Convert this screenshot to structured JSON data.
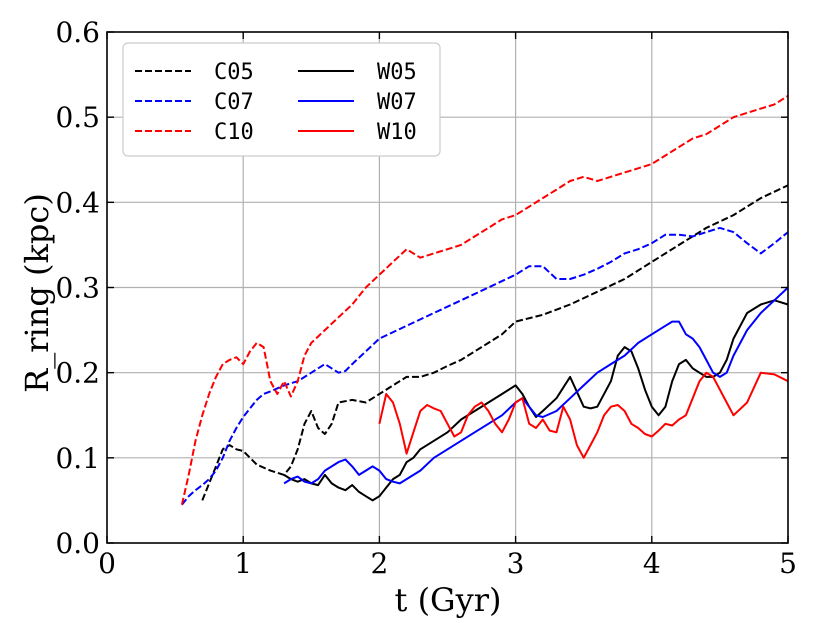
{
  "chart_data": {
    "type": "line",
    "xlabel": "t (Gyr)",
    "ylabel": "R_ring (kpc)",
    "xlim": [
      0,
      5
    ],
    "ylim": [
      0,
      0.6
    ],
    "xticks": [
      0,
      1,
      2,
      3,
      4,
      5
    ],
    "yticks": [
      0.0,
      0.1,
      0.2,
      0.3,
      0.4,
      0.5,
      0.6
    ],
    "xtick_labels": [
      "0",
      "1",
      "2",
      "3",
      "4",
      "5"
    ],
    "ytick_labels": [
      "0.0",
      "0.1",
      "0.2",
      "0.3",
      "0.4",
      "0.5",
      "0.6"
    ],
    "grid": true,
    "legend_position": "top-left",
    "series": [
      {
        "name": "C05",
        "color": "#000000",
        "style": "dashed",
        "x": [
          0.7,
          0.75,
          0.8,
          0.85,
          0.9,
          0.95,
          1.0,
          1.05,
          1.1,
          1.2,
          1.3,
          1.35,
          1.4,
          1.45,
          1.5,
          1.55,
          1.6,
          1.65,
          1.7,
          1.8,
          1.9,
          2.0,
          2.1,
          2.2,
          2.3,
          2.4,
          2.5,
          2.6,
          2.7,
          2.8,
          2.9,
          3.0,
          3.2,
          3.4,
          3.6,
          3.8,
          4.0,
          4.2,
          4.4,
          4.6,
          4.8,
          5.0
        ],
        "y": [
          0.05,
          0.07,
          0.09,
          0.11,
          0.115,
          0.11,
          0.108,
          0.1,
          0.092,
          0.085,
          0.08,
          0.09,
          0.11,
          0.14,
          0.155,
          0.135,
          0.128,
          0.14,
          0.165,
          0.168,
          0.165,
          0.175,
          0.185,
          0.195,
          0.195,
          0.2,
          0.208,
          0.215,
          0.225,
          0.235,
          0.245,
          0.26,
          0.268,
          0.28,
          0.295,
          0.31,
          0.33,
          0.35,
          0.37,
          0.385,
          0.405,
          0.42
        ]
      },
      {
        "name": "C07",
        "color": "#0000ff",
        "style": "dashed",
        "x": [
          0.55,
          0.6,
          0.65,
          0.7,
          0.75,
          0.8,
          0.85,
          0.9,
          0.95,
          1.0,
          1.05,
          1.1,
          1.15,
          1.2,
          1.3,
          1.4,
          1.5,
          1.6,
          1.7,
          1.75,
          1.8,
          1.9,
          2.0,
          2.2,
          2.4,
          2.6,
          2.8,
          3.0,
          3.1,
          3.2,
          3.3,
          3.4,
          3.5,
          3.6,
          3.7,
          3.8,
          3.9,
          4.0,
          4.1,
          4.2,
          4.3,
          4.4,
          4.5,
          4.6,
          4.7,
          4.8,
          4.9,
          5.0
        ],
        "y": [
          0.045,
          0.055,
          0.062,
          0.068,
          0.075,
          0.085,
          0.1,
          0.12,
          0.135,
          0.148,
          0.158,
          0.168,
          0.175,
          0.178,
          0.185,
          0.19,
          0.2,
          0.21,
          0.2,
          0.202,
          0.21,
          0.225,
          0.24,
          0.255,
          0.27,
          0.285,
          0.3,
          0.315,
          0.325,
          0.325,
          0.31,
          0.31,
          0.315,
          0.322,
          0.33,
          0.34,
          0.345,
          0.352,
          0.362,
          0.362,
          0.36,
          0.365,
          0.37,
          0.365,
          0.352,
          0.34,
          0.352,
          0.365
        ]
      },
      {
        "name": "C10",
        "color": "#ff0000",
        "style": "dashed",
        "x": [
          0.55,
          0.6,
          0.65,
          0.7,
          0.75,
          0.8,
          0.85,
          0.9,
          0.95,
          1.0,
          1.05,
          1.1,
          1.15,
          1.2,
          1.25,
          1.3,
          1.35,
          1.4,
          1.45,
          1.5,
          1.6,
          1.7,
          1.8,
          1.9,
          2.0,
          2.1,
          2.2,
          2.3,
          2.4,
          2.5,
          2.6,
          2.7,
          2.8,
          2.9,
          3.0,
          3.1,
          3.2,
          3.3,
          3.4,
          3.5,
          3.6,
          3.7,
          3.8,
          3.9,
          4.0,
          4.1,
          4.2,
          4.3,
          4.4,
          4.5,
          4.6,
          4.7,
          4.8,
          4.9,
          5.0
        ],
        "y": [
          0.045,
          0.08,
          0.12,
          0.15,
          0.175,
          0.195,
          0.21,
          0.215,
          0.218,
          0.21,
          0.225,
          0.235,
          0.23,
          0.19,
          0.175,
          0.19,
          0.172,
          0.19,
          0.22,
          0.235,
          0.25,
          0.265,
          0.28,
          0.3,
          0.315,
          0.33,
          0.345,
          0.335,
          0.34,
          0.345,
          0.35,
          0.36,
          0.37,
          0.38,
          0.385,
          0.395,
          0.405,
          0.415,
          0.425,
          0.43,
          0.425,
          0.43,
          0.435,
          0.44,
          0.445,
          0.455,
          0.465,
          0.475,
          0.48,
          0.49,
          0.5,
          0.505,
          0.51,
          0.515,
          0.525
        ]
      },
      {
        "name": "W05",
        "color": "#000000",
        "style": "solid",
        "x": [
          1.3,
          1.35,
          1.4,
          1.45,
          1.5,
          1.55,
          1.6,
          1.65,
          1.7,
          1.75,
          1.8,
          1.85,
          1.9,
          1.95,
          2.0,
          2.05,
          2.1,
          2.15,
          2.2,
          2.25,
          2.3,
          2.4,
          2.5,
          2.6,
          2.7,
          2.8,
          2.9,
          3.0,
          3.05,
          3.1,
          3.15,
          3.2,
          3.3,
          3.4,
          3.5,
          3.55,
          3.6,
          3.7,
          3.75,
          3.8,
          3.85,
          3.9,
          3.95,
          4.0,
          4.05,
          4.1,
          4.15,
          4.2,
          4.25,
          4.3,
          4.35,
          4.4,
          4.45,
          4.5,
          4.55,
          4.6,
          4.7,
          4.8,
          4.9,
          5.0
        ],
        "y": [
          0.08,
          0.075,
          0.072,
          0.075,
          0.07,
          0.068,
          0.08,
          0.07,
          0.065,
          0.062,
          0.068,
          0.06,
          0.055,
          0.05,
          0.055,
          0.065,
          0.075,
          0.08,
          0.095,
          0.1,
          0.11,
          0.12,
          0.13,
          0.145,
          0.155,
          0.165,
          0.175,
          0.185,
          0.175,
          0.16,
          0.148,
          0.155,
          0.17,
          0.195,
          0.16,
          0.158,
          0.16,
          0.19,
          0.22,
          0.23,
          0.225,
          0.205,
          0.18,
          0.16,
          0.15,
          0.16,
          0.19,
          0.21,
          0.215,
          0.205,
          0.2,
          0.195,
          0.195,
          0.2,
          0.215,
          0.24,
          0.27,
          0.28,
          0.285,
          0.28
        ]
      },
      {
        "name": "W07",
        "color": "#0000ff",
        "style": "solid",
        "x": [
          1.3,
          1.35,
          1.4,
          1.45,
          1.5,
          1.55,
          1.6,
          1.65,
          1.7,
          1.75,
          1.8,
          1.85,
          1.9,
          1.95,
          2.0,
          2.05,
          2.1,
          2.15,
          2.2,
          2.3,
          2.4,
          2.5,
          2.6,
          2.7,
          2.8,
          2.9,
          3.0,
          3.05,
          3.1,
          3.15,
          3.2,
          3.3,
          3.4,
          3.5,
          3.6,
          3.7,
          3.8,
          3.9,
          4.0,
          4.1,
          4.15,
          4.2,
          4.25,
          4.3,
          4.35,
          4.4,
          4.45,
          4.5,
          4.55,
          4.6,
          4.7,
          4.8,
          4.9,
          5.0
        ],
        "y": [
          0.07,
          0.075,
          0.078,
          0.072,
          0.07,
          0.075,
          0.085,
          0.09,
          0.095,
          0.098,
          0.09,
          0.08,
          0.085,
          0.09,
          0.085,
          0.075,
          0.072,
          0.07,
          0.075,
          0.085,
          0.1,
          0.11,
          0.12,
          0.13,
          0.14,
          0.15,
          0.165,
          0.17,
          0.16,
          0.15,
          0.148,
          0.155,
          0.17,
          0.185,
          0.2,
          0.21,
          0.22,
          0.235,
          0.245,
          0.255,
          0.26,
          0.26,
          0.245,
          0.24,
          0.23,
          0.215,
          0.2,
          0.195,
          0.2,
          0.22,
          0.25,
          0.27,
          0.285,
          0.3
        ]
      },
      {
        "name": "W10",
        "color": "#ff0000",
        "style": "solid",
        "x": [
          2.0,
          2.05,
          2.1,
          2.15,
          2.2,
          2.25,
          2.3,
          2.35,
          2.4,
          2.45,
          2.5,
          2.55,
          2.6,
          2.65,
          2.7,
          2.75,
          2.8,
          2.85,
          2.9,
          2.95,
          3.0,
          3.05,
          3.1,
          3.15,
          3.2,
          3.25,
          3.3,
          3.35,
          3.4,
          3.45,
          3.5,
          3.55,
          3.6,
          3.65,
          3.7,
          3.75,
          3.8,
          3.85,
          3.9,
          3.95,
          4.0,
          4.05,
          4.1,
          4.15,
          4.2,
          4.25,
          4.3,
          4.35,
          4.4,
          4.45,
          4.5,
          4.55,
          4.6,
          4.7,
          4.8,
          4.9,
          5.0
        ],
        "y": [
          0.14,
          0.175,
          0.165,
          0.14,
          0.105,
          0.13,
          0.155,
          0.162,
          0.158,
          0.155,
          0.14,
          0.125,
          0.13,
          0.15,
          0.16,
          0.165,
          0.155,
          0.14,
          0.13,
          0.145,
          0.165,
          0.17,
          0.14,
          0.135,
          0.145,
          0.132,
          0.13,
          0.16,
          0.145,
          0.115,
          0.1,
          0.115,
          0.13,
          0.15,
          0.16,
          0.162,
          0.155,
          0.14,
          0.135,
          0.128,
          0.125,
          0.132,
          0.14,
          0.138,
          0.145,
          0.15,
          0.17,
          0.19,
          0.2,
          0.195,
          0.18,
          0.165,
          0.15,
          0.165,
          0.2,
          0.198,
          0.19
        ]
      }
    ]
  }
}
